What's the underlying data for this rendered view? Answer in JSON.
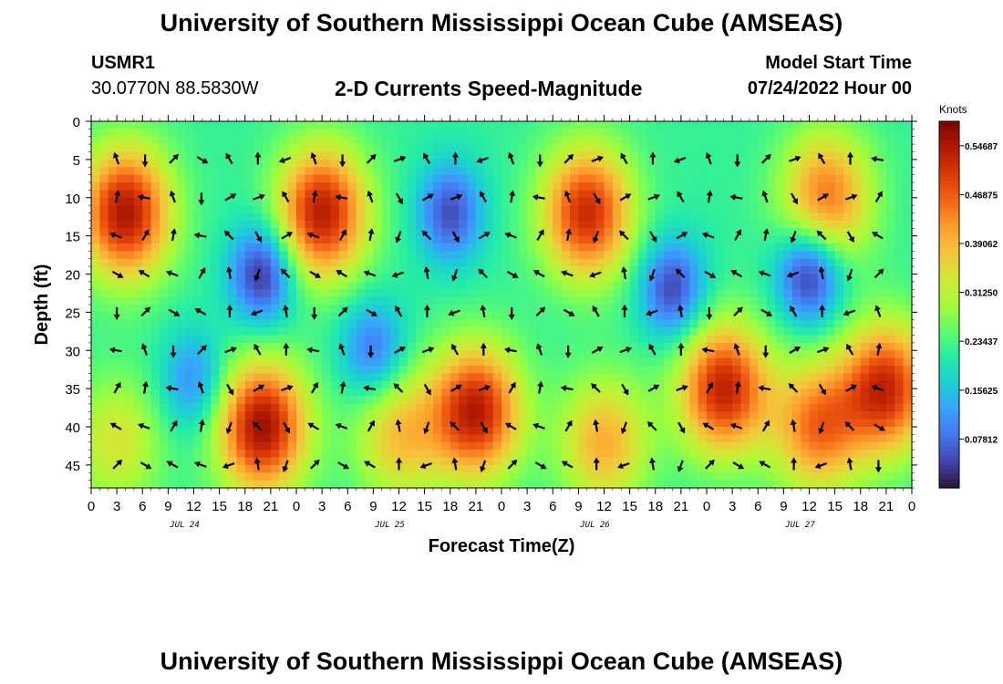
{
  "header": {
    "title": "University of Southern Mississippi Ocean Cube (AMSEAS)",
    "station": "USMR1",
    "coords": "30.0770N  88.5830W",
    "subtitle": "2-D Currents Speed-Magnitude",
    "model_label": "Model Start Time",
    "model_date": "07/24/2022 Hour 00",
    "footer_title": "University of Southern Mississippi Ocean Cube (AMSEAS)"
  },
  "chart_data": {
    "type": "heatmap",
    "title": "2-D Currents Speed-Magnitude",
    "xlabel": "Forecast Time(Z)",
    "ylabel": "Depth (ft)",
    "x_ticks": [
      "0",
      "3",
      "6",
      "9",
      "12",
      "15",
      "18",
      "21",
      "0",
      "3",
      "6",
      "9",
      "12",
      "15",
      "18",
      "21",
      "0",
      "3",
      "6",
      "9",
      "12",
      "15",
      "18",
      "21",
      "0",
      "3",
      "6",
      "9",
      "12",
      "15",
      "18",
      "21",
      "0"
    ],
    "x_dates": [
      "JUL 24",
      "JUL 25",
      "JUL 26",
      "JUL 27"
    ],
    "xlim": [
      0,
      96
    ],
    "ylim": [
      0,
      48
    ],
    "y_ticks": [
      "0",
      "5",
      "10",
      "15",
      "20",
      "25",
      "30",
      "35",
      "40",
      "45"
    ],
    "colorbar": {
      "unit": "Knots",
      "ticks": [
        "0.54687",
        "0.46875",
        "0.39062",
        "0.31250",
        "0.23437",
        "0.15625",
        "0.07812"
      ],
      "range": [
        0,
        0.586
      ]
    },
    "colors": [
      "#30123b",
      "#4145ab",
      "#4675ed",
      "#39a2fc",
      "#1bcfd4",
      "#24eca6",
      "#61fc6c",
      "#a4fc3b",
      "#d1e834",
      "#f3c63a",
      "#fe9b2d",
      "#f36315",
      "#d93806",
      "#b11901",
      "#7a0403"
    ],
    "high_speed_regions": [
      {
        "t": 4,
        "depth": 12,
        "speed": 0.55
      },
      {
        "t": 27,
        "depth": 12,
        "speed": 0.54
      },
      {
        "t": 58,
        "depth": 12,
        "speed": 0.52
      },
      {
        "t": 86,
        "depth": 10,
        "speed": 0.45
      },
      {
        "t": 20,
        "depth": 40,
        "speed": 0.56
      },
      {
        "t": 45,
        "depth": 38,
        "speed": 0.54
      },
      {
        "t": 74,
        "depth": 35,
        "speed": 0.53
      },
      {
        "t": 93,
        "depth": 35,
        "speed": 0.52
      },
      {
        "t": 36,
        "depth": 41,
        "speed": 0.38
      },
      {
        "t": 60,
        "depth": 42,
        "speed": 0.4
      },
      {
        "t": 85,
        "depth": 40,
        "speed": 0.45
      },
      {
        "t": 3,
        "depth": 42,
        "speed": 0.34
      }
    ],
    "low_speed_regions": [
      {
        "t": 20,
        "depth": 20,
        "speed": 0.02
      },
      {
        "t": 42,
        "depth": 12,
        "speed": 0.05
      },
      {
        "t": 68,
        "depth": 22,
        "speed": 0.04
      },
      {
        "t": 84,
        "depth": 20,
        "speed": 0.01
      },
      {
        "t": 12,
        "depth": 34,
        "speed": 0.1
      },
      {
        "t": 33,
        "depth": 30,
        "speed": 0.08
      }
    ]
  }
}
